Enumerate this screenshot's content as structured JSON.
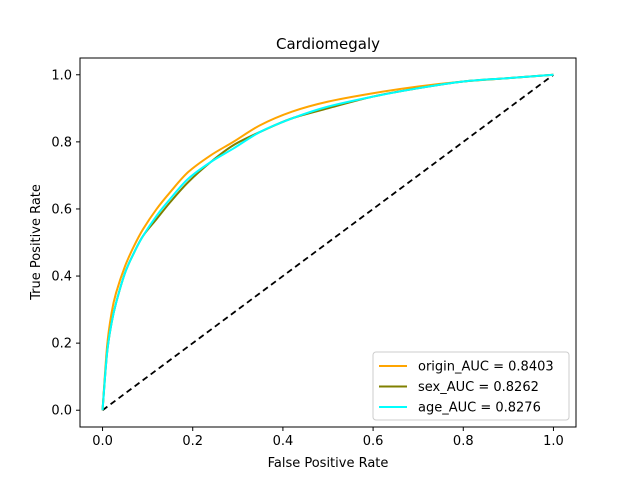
{
  "chart_data": {
    "type": "line",
    "title": "Cardiomegaly",
    "xlabel": "False Positive Rate",
    "ylabel": "True Positive Rate",
    "xlim": [
      -0.05,
      1.05
    ],
    "ylim": [
      -0.05,
      1.05
    ],
    "xticks": [
      "0.0",
      "0.2",
      "0.4",
      "0.6",
      "0.8",
      "1.0"
    ],
    "yticks": [
      "0.0",
      "0.2",
      "0.4",
      "0.6",
      "0.8",
      "1.0"
    ],
    "grid": false,
    "legend_position": "lower-right",
    "series": [
      {
        "name": "origin_AUC = 0.8403",
        "color": "#ffa500",
        "x": [
          0.0,
          0.01,
          0.02,
          0.03,
          0.05,
          0.07,
          0.09,
          0.12,
          0.15,
          0.19,
          0.24,
          0.29,
          0.35,
          0.42,
          0.5,
          0.6,
          0.7,
          0.8,
          0.9,
          1.0
        ],
        "y": [
          0.0,
          0.19,
          0.29,
          0.35,
          0.43,
          0.49,
          0.54,
          0.6,
          0.65,
          0.71,
          0.76,
          0.8,
          0.85,
          0.89,
          0.92,
          0.945,
          0.965,
          0.98,
          0.99,
          1.0
        ]
      },
      {
        "name": "sex_AUC = 0.8262",
        "color": "#808000",
        "x": [
          0.0,
          0.01,
          0.02,
          0.03,
          0.05,
          0.07,
          0.09,
          0.12,
          0.15,
          0.19,
          0.24,
          0.29,
          0.35,
          0.42,
          0.5,
          0.6,
          0.7,
          0.8,
          0.9,
          1.0
        ],
        "y": [
          0.0,
          0.17,
          0.26,
          0.32,
          0.41,
          0.47,
          0.52,
          0.57,
          0.62,
          0.68,
          0.74,
          0.79,
          0.83,
          0.87,
          0.9,
          0.935,
          0.96,
          0.98,
          0.99,
          1.0
        ]
      },
      {
        "name": "age_AUC = 0.8276",
        "color": "#00ffff",
        "x": [
          0.0,
          0.01,
          0.02,
          0.03,
          0.05,
          0.07,
          0.09,
          0.12,
          0.15,
          0.19,
          0.24,
          0.29,
          0.35,
          0.42,
          0.5,
          0.6,
          0.7,
          0.8,
          0.9,
          1.0
        ],
        "y": [
          0.0,
          0.17,
          0.26,
          0.32,
          0.41,
          0.47,
          0.52,
          0.58,
          0.63,
          0.69,
          0.74,
          0.78,
          0.83,
          0.87,
          0.905,
          0.935,
          0.96,
          0.98,
          0.99,
          1.0
        ]
      }
    ],
    "reference_line": {
      "x": [
        0,
        1
      ],
      "y": [
        0,
        1
      ],
      "style": "dashed",
      "color": "#000000"
    }
  }
}
